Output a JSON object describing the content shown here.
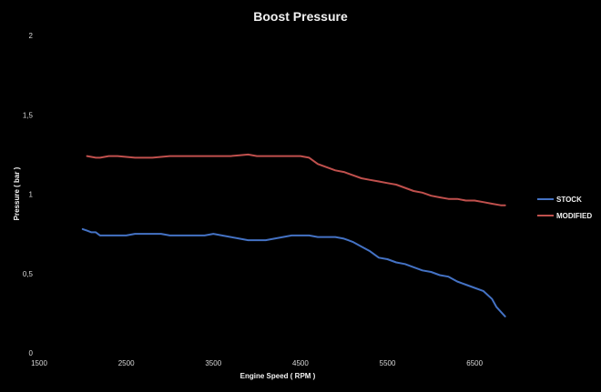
{
  "chart_data": {
    "type": "line",
    "title": "Boost Pressure",
    "xlabel": "Engine Speed ( RPM )",
    "ylabel": "Pressure ( bar )",
    "xlim": [
      1500,
      7000
    ],
    "ylim": [
      0,
      2
    ],
    "x_ticks": [
      1500,
      2500,
      3500,
      4500,
      5500,
      6500
    ],
    "x_tick_labels": [
      "1500",
      "2500",
      "3500",
      "4500",
      "5500",
      "6500"
    ],
    "y_ticks": [
      0,
      0.5,
      1,
      1.5,
      2
    ],
    "y_tick_labels": [
      "0",
      "0,5",
      "1",
      "1,5",
      "2"
    ],
    "grid": false,
    "legend_position": "right",
    "background": "#000000",
    "series": [
      {
        "name": "STOCK",
        "color": "#4472c4",
        "points": [
          [
            2000,
            0.78
          ],
          [
            2050,
            0.77
          ],
          [
            2100,
            0.76
          ],
          [
            2150,
            0.76
          ],
          [
            2200,
            0.74
          ],
          [
            2300,
            0.74
          ],
          [
            2400,
            0.74
          ],
          [
            2500,
            0.74
          ],
          [
            2600,
            0.75
          ],
          [
            2700,
            0.75
          ],
          [
            2800,
            0.75
          ],
          [
            2900,
            0.75
          ],
          [
            3000,
            0.74
          ],
          [
            3100,
            0.74
          ],
          [
            3200,
            0.74
          ],
          [
            3300,
            0.74
          ],
          [
            3400,
            0.74
          ],
          [
            3500,
            0.75
          ],
          [
            3600,
            0.74
          ],
          [
            3700,
            0.73
          ],
          [
            3800,
            0.72
          ],
          [
            3900,
            0.71
          ],
          [
            4000,
            0.71
          ],
          [
            4100,
            0.71
          ],
          [
            4200,
            0.72
          ],
          [
            4300,
            0.73
          ],
          [
            4400,
            0.74
          ],
          [
            4500,
            0.74
          ],
          [
            4600,
            0.74
          ],
          [
            4700,
            0.73
          ],
          [
            4800,
            0.73
          ],
          [
            4900,
            0.73
          ],
          [
            5000,
            0.72
          ],
          [
            5100,
            0.7
          ],
          [
            5200,
            0.67
          ],
          [
            5300,
            0.64
          ],
          [
            5400,
            0.6
          ],
          [
            5500,
            0.59
          ],
          [
            5600,
            0.57
          ],
          [
            5700,
            0.56
          ],
          [
            5800,
            0.54
          ],
          [
            5900,
            0.52
          ],
          [
            6000,
            0.51
          ],
          [
            6100,
            0.49
          ],
          [
            6200,
            0.48
          ],
          [
            6300,
            0.45
          ],
          [
            6400,
            0.43
          ],
          [
            6500,
            0.41
          ],
          [
            6600,
            0.39
          ],
          [
            6700,
            0.34
          ],
          [
            6750,
            0.29
          ],
          [
            6850,
            0.23
          ]
        ]
      },
      {
        "name": "MODIFIED",
        "color": "#c0504d",
        "points": [
          [
            2050,
            1.24
          ],
          [
            2100,
            1.235
          ],
          [
            2150,
            1.23
          ],
          [
            2200,
            1.23
          ],
          [
            2300,
            1.24
          ],
          [
            2400,
            1.24
          ],
          [
            2500,
            1.235
          ],
          [
            2600,
            1.23
          ],
          [
            2700,
            1.23
          ],
          [
            2800,
            1.23
          ],
          [
            2900,
            1.235
          ],
          [
            3000,
            1.24
          ],
          [
            3100,
            1.24
          ],
          [
            3200,
            1.24
          ],
          [
            3300,
            1.24
          ],
          [
            3400,
            1.24
          ],
          [
            3500,
            1.24
          ],
          [
            3600,
            1.24
          ],
          [
            3700,
            1.24
          ],
          [
            3800,
            1.245
          ],
          [
            3900,
            1.25
          ],
          [
            4000,
            1.24
          ],
          [
            4100,
            1.24
          ],
          [
            4200,
            1.24
          ],
          [
            4300,
            1.24
          ],
          [
            4400,
            1.24
          ],
          [
            4500,
            1.24
          ],
          [
            4600,
            1.23
          ],
          [
            4700,
            1.19
          ],
          [
            4800,
            1.17
          ],
          [
            4900,
            1.15
          ],
          [
            5000,
            1.14
          ],
          [
            5100,
            1.12
          ],
          [
            5200,
            1.1
          ],
          [
            5300,
            1.09
          ],
          [
            5400,
            1.08
          ],
          [
            5500,
            1.07
          ],
          [
            5600,
            1.06
          ],
          [
            5700,
            1.04
          ],
          [
            5800,
            1.02
          ],
          [
            5900,
            1.01
          ],
          [
            6000,
            0.99
          ],
          [
            6100,
            0.98
          ],
          [
            6200,
            0.97
          ],
          [
            6300,
            0.97
          ],
          [
            6400,
            0.96
          ],
          [
            6500,
            0.96
          ],
          [
            6600,
            0.95
          ],
          [
            6700,
            0.94
          ],
          [
            6800,
            0.93
          ],
          [
            6850,
            0.93
          ]
        ]
      }
    ]
  }
}
